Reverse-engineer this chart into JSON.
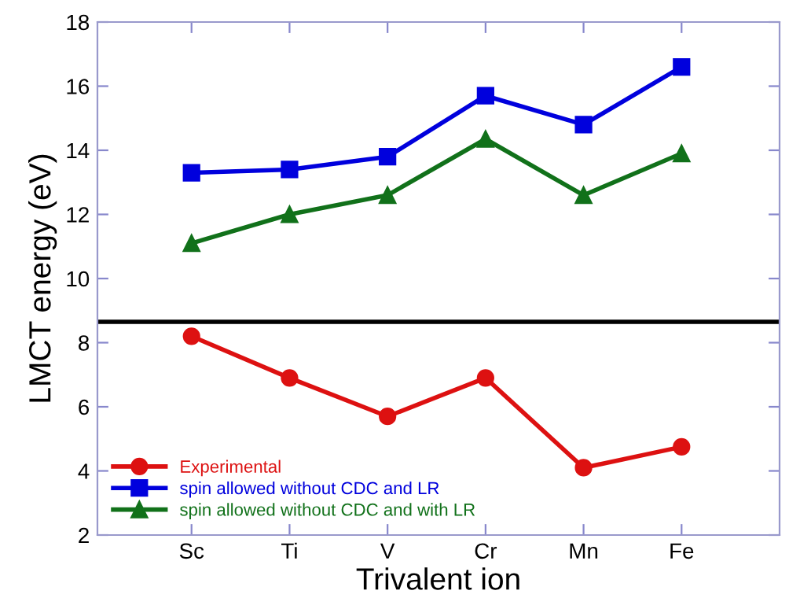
{
  "chart_data": {
    "type": "line",
    "xlabel": "Trivalent ion",
    "ylabel": "LMCT energy (eV)",
    "categories": [
      "Sc",
      "Ti",
      "V",
      "Cr",
      "Mn",
      "Fe"
    ],
    "series": [
      {
        "name": "Experimental",
        "color": "#dd1111",
        "marker": "circle",
        "values": [
          8.2,
          6.9,
          5.7,
          6.9,
          4.1,
          4.75
        ]
      },
      {
        "name": "spin allowed without CDC and LR",
        "color": "#0000dd",
        "marker": "square",
        "values": [
          13.3,
          13.4,
          13.8,
          15.7,
          14.8,
          16.6
        ]
      },
      {
        "name": "spin allowed without CDC and with LR",
        "color": "#11711a",
        "marker": "triangle",
        "values": [
          11.1,
          12.0,
          12.6,
          14.35,
          12.6,
          13.9
        ]
      }
    ],
    "ref_lines": [
      {
        "axis": "y",
        "value": 8.65,
        "color": "#000000",
        "line_style": "solid"
      }
    ],
    "ylim": [
      2,
      18
    ],
    "yticks": [
      2,
      4,
      6,
      8,
      10,
      12,
      14,
      16,
      18
    ],
    "grid": false,
    "legend": "bottom left"
  }
}
